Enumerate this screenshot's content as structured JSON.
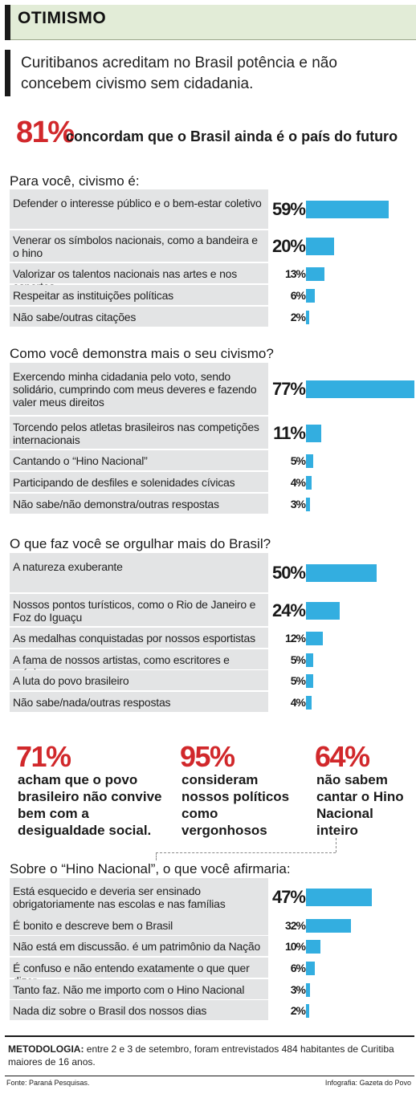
{
  "header": {
    "title": "OTIMISMO"
  },
  "intro": "Curitibanos acreditam no Brasil potência e não concebem civismo sem cidadania.",
  "hero": {
    "value": "81%",
    "text": "concordam que o Brasil ainda é o país do futuro"
  },
  "colors": {
    "accent_red": "#d1282b",
    "bar_blue": "#33aee0",
    "row_gray": "#e3e4e5",
    "header_green": "#e2ecd7"
  },
  "chart_data": [
    {
      "type": "bar",
      "title": "Para você, civismo é:",
      "categories": [
        "Defender o interesse público e o bem-estar coletivo",
        "Venerar os símbolos nacionais, como a bandeira e o hino",
        "Valorizar os talentos nacionais nas artes e nos esportes",
        "Respeitar as instituições políticas",
        "Não sabe/outras citações"
      ],
      "values": [
        59,
        20,
        13,
        6,
        2
      ],
      "labels": [
        "59%",
        "20%",
        "13%",
        "6%",
        "2%"
      ]
    },
    {
      "type": "bar",
      "title": "Como você demonstra mais o seu civismo?",
      "categories": [
        "Exercendo minha cidadania pelo voto, sendo solidário, cumprindo com meus deveres e fazendo valer meus direitos",
        "Torcendo pelos atletas brasileiros nas competições internacionais",
        "Cantando o “Hino Nacional”",
        "Participando de desfiles e solenidades cívicas",
        "Não sabe/não demonstra/outras respostas"
      ],
      "values": [
        77,
        11,
        5,
        4,
        3
      ],
      "labels": [
        "77%",
        "11%",
        "5%",
        "4%",
        "3%"
      ]
    },
    {
      "type": "bar",
      "title": "O que faz você se orgulhar mais do Brasil?",
      "categories": [
        "A natureza exuberante",
        "Nossos pontos turísticos, como o Rio de Janeiro e Foz do Iguaçu",
        "As medalhas conquistadas por nossos esportistas",
        "A fama de nossos artistas, como escritores e músicos",
        "A luta do povo brasileiro",
        "Não sabe/nada/outras respostas"
      ],
      "values": [
        50,
        24,
        12,
        5,
        5,
        4
      ],
      "labels": [
        "50%",
        "24%",
        "12%",
        "5%",
        "5%",
        "4%"
      ]
    },
    {
      "type": "bar",
      "title": "Sobre o “Hino Nacional”, o que você afirmaria:",
      "categories": [
        "Está esquecido e deveria ser ensinado obrigatoriamente nas escolas e nas famílias",
        "É bonito e descreve bem o Brasil",
        "Não está em discussão. é um patrimônio da Nação",
        "É confuso e não entendo exatamente o que quer dizer",
        "Tanto faz. Não me importo com o Hino Nacional",
        "Nada diz sobre o Brasil dos nossos dias"
      ],
      "values": [
        47,
        32,
        10,
        6,
        3,
        2
      ],
      "labels": [
        "47%",
        "32%",
        "10%",
        "6%",
        "3%",
        "2%"
      ]
    }
  ],
  "stats": [
    {
      "value": "71%",
      "text": "acham que o povo brasileiro não convive bem com a desigualdade social."
    },
    {
      "value": "95%",
      "text": "consideram nossos políticos como vergonhosos"
    },
    {
      "value": "64%",
      "text": "não sabem cantar o Hino Nacional inteiro"
    }
  ],
  "methodology": {
    "label": "METODOLOGIA:",
    "text": "entre 2 e 3 de setembro, foram entrevistados 484 habitantes de Curitiba maiores de 16 anos."
  },
  "source": "Fonte: Paraná Pesquisas.",
  "credit": "Infografia: Gazeta do Povo"
}
